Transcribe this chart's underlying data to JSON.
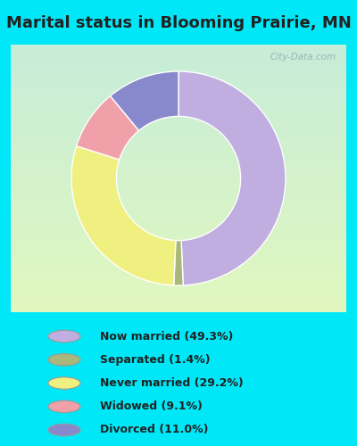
{
  "title": "Marital status in Blooming Prairie, MN",
  "slices": [
    {
      "label": "Now married (49.3%)",
      "value": 49.3,
      "color": "#c0aee0"
    },
    {
      "label": "Separated (1.4%)",
      "value": 1.4,
      "color": "#a8b87a"
    },
    {
      "label": "Never married (29.2%)",
      "value": 29.2,
      "color": "#f0f080"
    },
    {
      "label": "Widowed (9.1%)",
      "value": 9.1,
      "color": "#f0a0a8"
    },
    {
      "label": "Divorced (11.0%)",
      "value": 11.0,
      "color": "#8888cc"
    }
  ],
  "bg_outer_color": "#c0ece0",
  "bg_inner_color": "#e8f8e8",
  "legend_bg": "#00e8f8",
  "title_bg": "#00e8f8",
  "title_fontsize": 13,
  "watermark": "City-Data.com",
  "donut_width": 0.42
}
